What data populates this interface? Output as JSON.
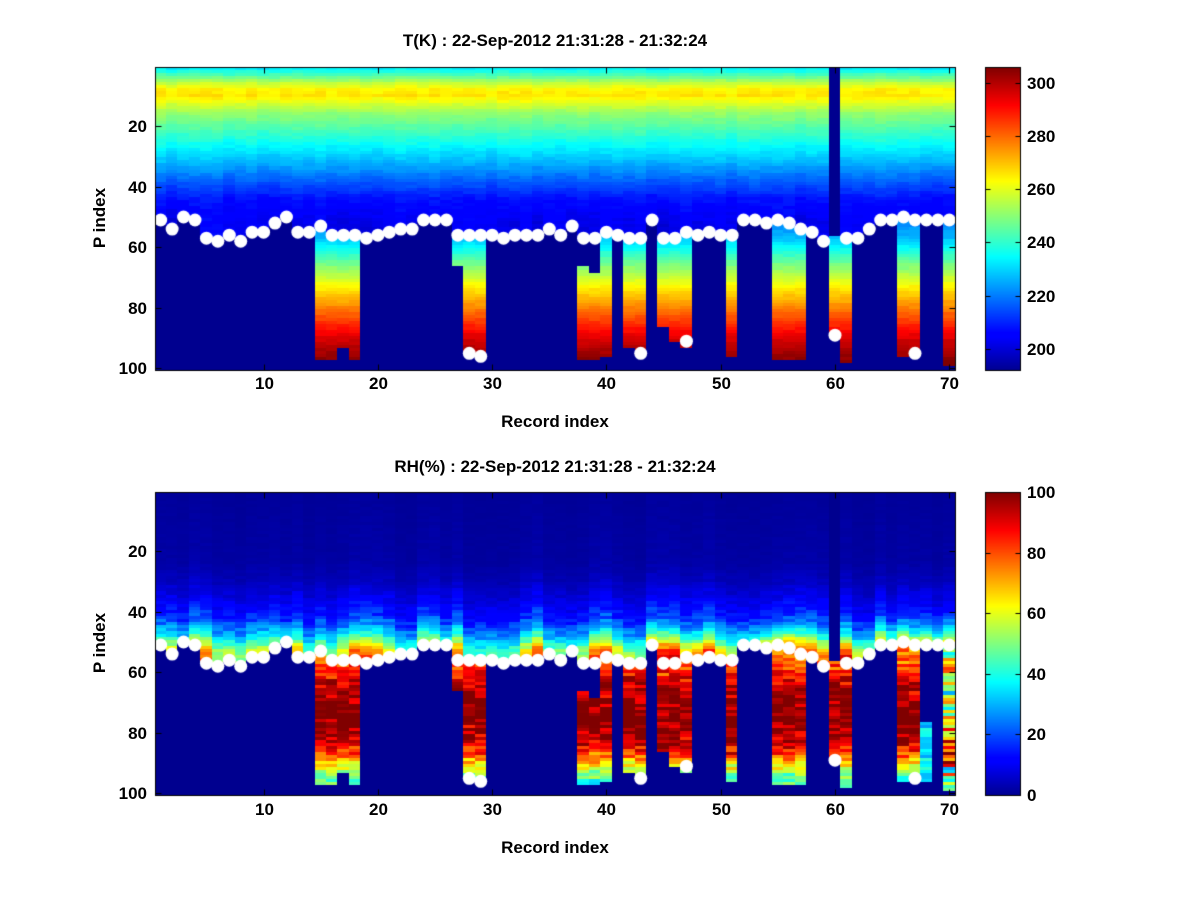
{
  "figure": {
    "background": "#ffffff",
    "marker_color": "#ffffff",
    "nodata_color": "#00008f"
  },
  "chart_data": [
    {
      "type": "heatmap",
      "title": "T(K) : 22-Sep-2012 21:31:28 - 21:32:24",
      "xlabel": "Record index",
      "ylabel": "P index",
      "colormap": "jet",
      "clim": [
        192,
        306
      ],
      "x_ticks": [
        10,
        20,
        30,
        40,
        50,
        60,
        70
      ],
      "y_ticks": [
        20,
        40,
        60,
        80,
        100
      ],
      "colorbar_ticks": [
        200,
        220,
        240,
        260,
        280,
        300
      ],
      "x_range": [
        0.5,
        70.5
      ],
      "y_range": [
        0.5,
        100.5
      ],
      "y_axis_reversed": true,
      "grid": false,
      "n_records": 70,
      "n_levels": 100,
      "profile_vs_p": [
        [
          1,
          234
        ],
        [
          2,
          238
        ],
        [
          4,
          247
        ],
        [
          6,
          257
        ],
        [
          8,
          264
        ],
        [
          10,
          266
        ],
        [
          12,
          261
        ],
        [
          14,
          256
        ],
        [
          16,
          251
        ],
        [
          18,
          248
        ],
        [
          20,
          245
        ],
        [
          24,
          239
        ],
        [
          28,
          233
        ],
        [
          32,
          227
        ],
        [
          36,
          220
        ],
        [
          40,
          214
        ],
        [
          44,
          208
        ],
        [
          48,
          204
        ],
        [
          52,
          201
        ],
        [
          58,
          199
        ]
      ],
      "deep_profile_vs_p": [
        [
          51,
          220
        ],
        [
          57,
          227
        ],
        [
          62,
          239
        ],
        [
          68,
          253
        ],
        [
          74,
          266
        ],
        [
          80,
          277
        ],
        [
          86,
          288
        ],
        [
          91,
          297
        ],
        [
          95,
          302
        ],
        [
          99,
          306
        ]
      ],
      "surface_p": [
        51,
        54,
        50,
        51,
        57,
        58,
        56,
        58,
        55,
        55,
        52,
        50,
        55,
        55,
        53,
        56,
        56,
        56,
        57,
        56,
        55,
        54,
        54,
        51,
        51,
        51,
        56,
        56,
        56,
        56,
        57,
        56,
        56,
        56,
        54,
        56,
        53,
        57,
        57,
        55,
        56,
        57,
        57,
        51,
        57,
        57,
        55,
        56,
        55,
        56,
        56,
        51,
        51,
        52,
        51,
        52,
        54,
        55,
        58,
        null,
        57,
        57,
        54,
        51,
        51,
        50,
        51,
        51,
        51,
        51
      ],
      "deep_columns": [
        {
          "r": 15,
          "top": 54,
          "bottom": 97
        },
        {
          "r": 16,
          "top": 57,
          "bottom": 97
        },
        {
          "r": 17,
          "top": 57,
          "bottom": 93
        },
        {
          "r": 18,
          "top": 57,
          "bottom": 97
        },
        {
          "r": 27,
          "top": 57,
          "bottom": 66
        },
        {
          "r": 28,
          "top": 57,
          "bottom": 95
        },
        {
          "r": 29,
          "top": 57,
          "bottom": 96
        },
        {
          "r": 38,
          "top": 67,
          "bottom": 97
        },
        {
          "r": 39,
          "top": 69,
          "bottom": 97
        },
        {
          "r": 40,
          "top": 56,
          "bottom": 96
        },
        {
          "r": 42,
          "top": 58,
          "bottom": 93
        },
        {
          "r": 43,
          "top": 58,
          "bottom": 95
        },
        {
          "r": 45,
          "top": 58,
          "bottom": 86
        },
        {
          "r": 46,
          "top": 58,
          "bottom": 91
        },
        {
          "r": 47,
          "top": 56,
          "bottom": 93
        },
        {
          "r": 51,
          "top": 57,
          "bottom": 96
        },
        {
          "r": 55,
          "top": 52,
          "bottom": 97
        },
        {
          "r": 56,
          "top": 53,
          "bottom": 97
        },
        {
          "r": 57,
          "top": 55,
          "bottom": 97
        },
        {
          "r": 60,
          "top": 57,
          "bottom": 88
        },
        {
          "r": 61,
          "top": 58,
          "bottom": 98
        },
        {
          "r": 66,
          "top": 51,
          "bottom": 96
        },
        {
          "r": 67,
          "top": 52,
          "bottom": 94
        },
        {
          "r": 70,
          "top": 52,
          "bottom": 99
        }
      ],
      "deep_dots": [
        {
          "r": 28,
          "p": 95
        },
        {
          "r": 29,
          "p": 96
        },
        {
          "r": 43,
          "p": 95
        },
        {
          "r": 47,
          "p": 91
        },
        {
          "r": 60,
          "p": 89
        },
        {
          "r": 67,
          "p": 95
        }
      ]
    },
    {
      "type": "heatmap",
      "title": "RH(%) : 22-Sep-2012 21:31:28 - 21:32:24",
      "xlabel": "Record index",
      "ylabel": "P index",
      "colormap": "jet",
      "clim": [
        0,
        100
      ],
      "x_ticks": [
        10,
        20,
        30,
        40,
        50,
        60,
        70
      ],
      "y_ticks": [
        20,
        40,
        60,
        80,
        100
      ],
      "colorbar_ticks": [
        0,
        20,
        40,
        60,
        80,
        100
      ],
      "x_range": [
        0.5,
        70.5
      ],
      "y_range": [
        0.5,
        100.5
      ],
      "y_axis_reversed": true,
      "grid": false,
      "n_records": 70,
      "n_levels": 100,
      "profile_vs_p": [
        [
          1,
          1
        ],
        [
          24,
          2
        ],
        [
          30,
          4
        ],
        [
          34,
          7
        ],
        [
          38,
          11
        ],
        [
          42,
          16
        ],
        [
          45,
          24
        ],
        [
          48,
          34
        ],
        [
          51,
          48
        ],
        [
          53,
          57
        ],
        [
          55,
          62
        ],
        [
          58,
          66
        ]
      ],
      "deep_profile_vs_p": [
        [
          51,
          70
        ],
        [
          58,
          80
        ],
        [
          64,
          92
        ],
        [
          70,
          97
        ],
        [
          76,
          98
        ],
        [
          82,
          93
        ],
        [
          86,
          82
        ],
        [
          90,
          68
        ],
        [
          93,
          55
        ],
        [
          96,
          45
        ],
        [
          99,
          40
        ]
      ],
      "surface_band_boost": [
        [
          1,
          40,
          0
        ],
        [
          41,
          53,
          5
        ],
        [
          54,
          70,
          14
        ]
      ],
      "surface_p": [
        51,
        54,
        50,
        51,
        57,
        58,
        56,
        58,
        55,
        55,
        52,
        50,
        55,
        55,
        53,
        56,
        56,
        56,
        57,
        56,
        55,
        54,
        54,
        51,
        51,
        51,
        56,
        56,
        56,
        56,
        57,
        56,
        56,
        56,
        54,
        56,
        53,
        57,
        57,
        55,
        56,
        57,
        57,
        51,
        57,
        57,
        55,
        56,
        55,
        56,
        56,
        51,
        51,
        52,
        51,
        52,
        54,
        55,
        58,
        null,
        57,
        57,
        54,
        51,
        51,
        50,
        51,
        51,
        51,
        51
      ],
      "deep_columns": [
        {
          "r": 15,
          "top": 54,
          "bottom": 97
        },
        {
          "r": 16,
          "top": 57,
          "bottom": 97
        },
        {
          "r": 17,
          "top": 57,
          "bottom": 93
        },
        {
          "r": 18,
          "top": 57,
          "bottom": 97
        },
        {
          "r": 27,
          "top": 57,
          "bottom": 66
        },
        {
          "r": 28,
          "top": 57,
          "bottom": 95
        },
        {
          "r": 29,
          "top": 57,
          "bottom": 96
        },
        {
          "r": 38,
          "top": 67,
          "bottom": 97
        },
        {
          "r": 39,
          "top": 69,
          "bottom": 97
        },
        {
          "r": 40,
          "top": 56,
          "bottom": 96
        },
        {
          "r": 42,
          "top": 58,
          "bottom": 93
        },
        {
          "r": 43,
          "top": 58,
          "bottom": 95
        },
        {
          "r": 45,
          "top": 58,
          "bottom": 86
        },
        {
          "r": 46,
          "top": 58,
          "bottom": 91
        },
        {
          "r": 47,
          "top": 56,
          "bottom": 93
        },
        {
          "r": 51,
          "top": 57,
          "bottom": 96
        },
        {
          "r": 55,
          "top": 52,
          "bottom": 97
        },
        {
          "r": 56,
          "top": 53,
          "bottom": 97
        },
        {
          "r": 57,
          "top": 55,
          "bottom": 97
        },
        {
          "r": 60,
          "top": 57,
          "bottom": 88
        },
        {
          "r": 61,
          "top": 58,
          "bottom": 98
        },
        {
          "r": 66,
          "top": 51,
          "bottom": 96
        },
        {
          "r": 67,
          "top": 52,
          "bottom": 94
        },
        {
          "r": 68,
          "top": 77,
          "bottom": 96,
          "weak": true
        },
        {
          "r": 70,
          "top": 52,
          "bottom": 99,
          "mix": true
        }
      ],
      "deep_dots": [
        {
          "r": 28,
          "p": 95
        },
        {
          "r": 29,
          "p": 96
        },
        {
          "r": 43,
          "p": 95
        },
        {
          "r": 47,
          "p": 91
        },
        {
          "r": 60,
          "p": 89
        },
        {
          "r": 67,
          "p": 95
        }
      ]
    }
  ]
}
